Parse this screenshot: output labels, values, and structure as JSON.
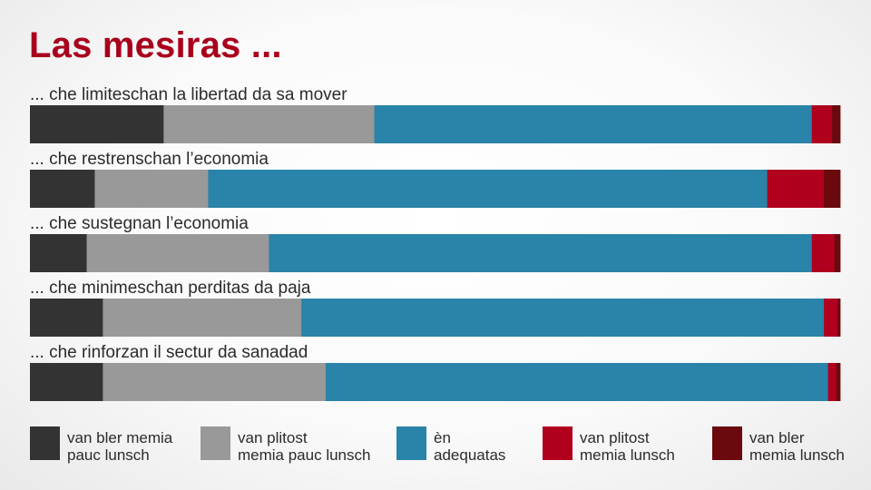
{
  "chart_data": {
    "type": "bar",
    "orientation": "horizontal",
    "stacked": true,
    "normalized": true,
    "title": "Las mesiras ...",
    "categories": [
      "... che limiteschan la libertad da sa mover",
      "... che restrenschan l’economia",
      "... che sustegnan l’economia",
      "... che minimeschan perditas da paja",
      "... che rinforzan il sectur da sanadad"
    ],
    "series": [
      {
        "name": "van bler memia pauc lunsch",
        "legend_lines": [
          "van bler memia",
          "pauc lunsch"
        ],
        "color": "#333333",
        "values": [
          16.5,
          8,
          7,
          9,
          9
        ]
      },
      {
        "name": "van plitost memia pauc lunsch",
        "legend_lines": [
          "van plitost",
          "memia pauc lunsch"
        ],
        "color": "#999999",
        "values": [
          26,
          14,
          22.5,
          24.5,
          27.5
        ]
      },
      {
        "name": "èn adequatas",
        "legend_lines": [
          "èn",
          "adequatas"
        ],
        "color": "#2a83a8",
        "values": [
          54,
          69,
          67,
          64.5,
          62
        ]
      },
      {
        "name": "van plitost memia lunsch",
        "legend_lines": [
          "van plitost",
          "memia lunsch"
        ],
        "color": "#b0001e",
        "values": [
          2.5,
          7,
          2.8,
          1.7,
          1
        ]
      },
      {
        "name": "van bler memia lunsch",
        "legend_lines": [
          "van bler",
          "memia lunsch"
        ],
        "color": "#6b0a0e",
        "values": [
          1,
          2,
          0.7,
          0.3,
          0.5
        ]
      }
    ],
    "legend_position": "bottom",
    "grid": false
  }
}
